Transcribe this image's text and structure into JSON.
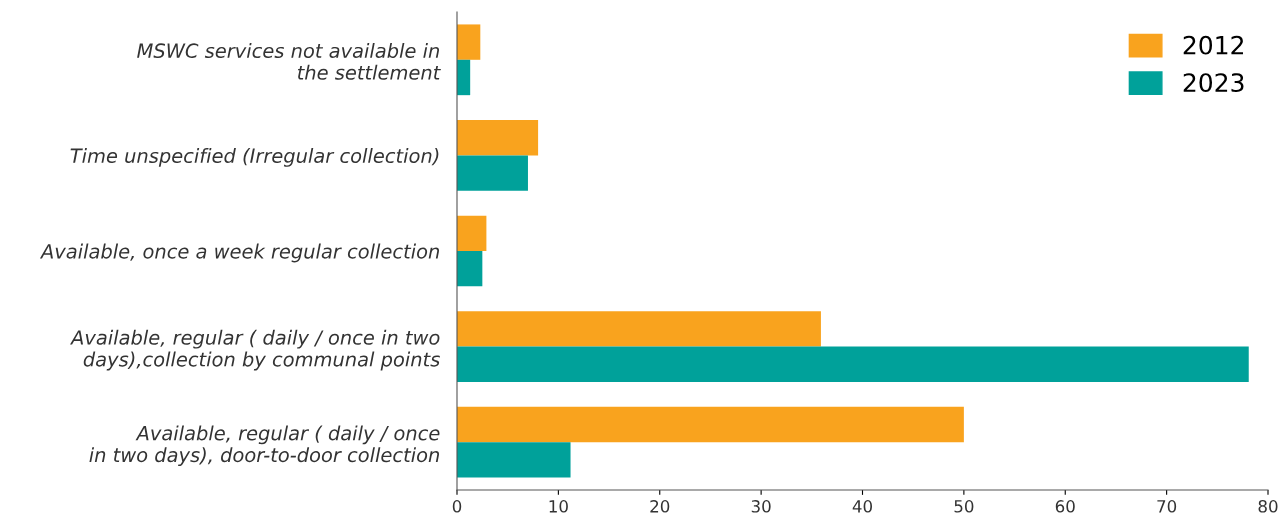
{
  "chart_data": {
    "type": "bar",
    "orientation": "horizontal",
    "categories": [
      "MSWC services not available in\nthe settlement",
      "Time unspecified (Irregular collection)",
      "Available, once a week regular collection",
      "Available, regular ( daily / once in two\ndays),collection by communal points",
      "Available, regular ( daily / once\nin two days), door-to-door collection"
    ],
    "series": [
      {
        "name": "2012",
        "color": "#f9a31e",
        "values": [
          2.3,
          8.0,
          2.9,
          35.9,
          50.0
        ]
      },
      {
        "name": "2023",
        "color": "#00a19a",
        "values": [
          1.3,
          7.0,
          2.5,
          78.1,
          11.2
        ]
      }
    ],
    "xlim": [
      0,
      80
    ],
    "xticks": [
      0,
      10,
      20,
      30,
      40,
      50,
      60,
      70,
      80
    ],
    "grid": false,
    "legend": "top right"
  }
}
